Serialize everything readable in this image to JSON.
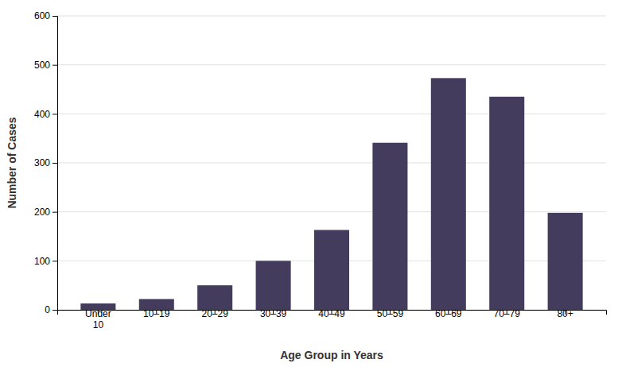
{
  "chart_data": {
    "type": "bar",
    "categories": [
      "Under\n10",
      "10–19",
      "20–29",
      "30–39",
      "40–49",
      "50–59",
      "60–69",
      "70–79",
      "80+"
    ],
    "values": [
      13,
      22,
      50,
      100,
      163,
      341,
      473,
      435,
      198
    ],
    "color": "#443c5c",
    "xlabel": "Age Group in Years",
    "ylabel": "Number of Cases",
    "ylim": [
      0,
      600
    ],
    "yticks": [
      0,
      100,
      200,
      300,
      400,
      500,
      600
    ],
    "grid": true
  }
}
